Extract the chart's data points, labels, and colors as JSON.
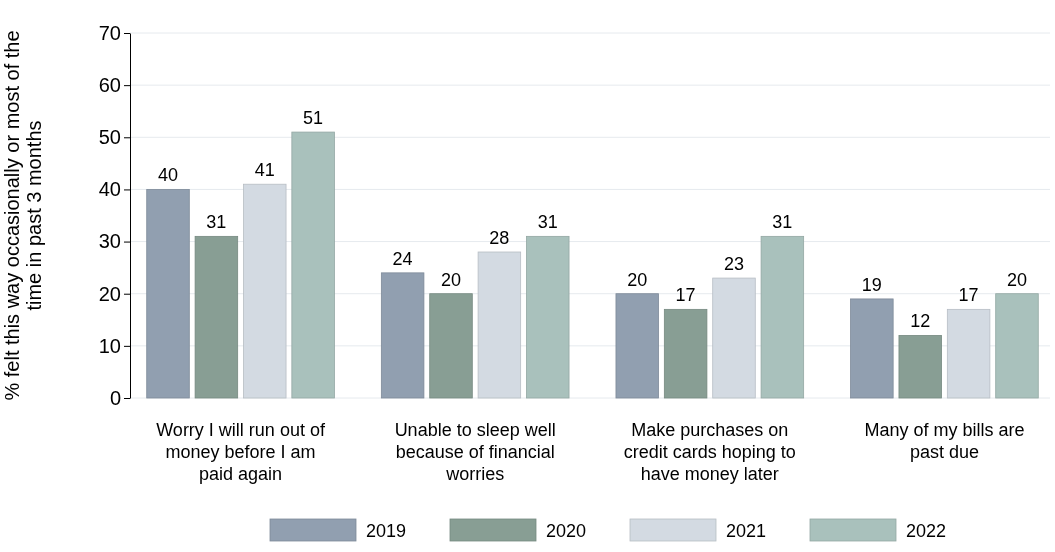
{
  "chart_data": {
    "type": "bar",
    "ylabel": "% felt this way occasionally or most of the time in past 3 months",
    "categories": [
      "Worry I will run out of money before I am paid again",
      "Unable to sleep well because of financial worries",
      "Make purchases on credit cards hoping to have money later",
      "Many of my bills are past due"
    ],
    "series": [
      {
        "name": "2019",
        "color": "#919fb0",
        "values": [
          40,
          24,
          20,
          19
        ]
      },
      {
        "name": "2020",
        "color": "#889e94",
        "values": [
          31,
          20,
          17,
          12
        ]
      },
      {
        "name": "2021",
        "color": "#d3dae2",
        "values": [
          41,
          28,
          23,
          17
        ]
      },
      {
        "name": "2022",
        "color": "#a9c1bc",
        "values": [
          51,
          31,
          31,
          20
        ]
      }
    ],
    "ylim": [
      0,
      70
    ],
    "yticks": [
      0,
      10,
      20,
      30,
      40,
      50,
      60,
      70
    ],
    "grid": "y",
    "legend": "bottom",
    "data_labels": true
  }
}
